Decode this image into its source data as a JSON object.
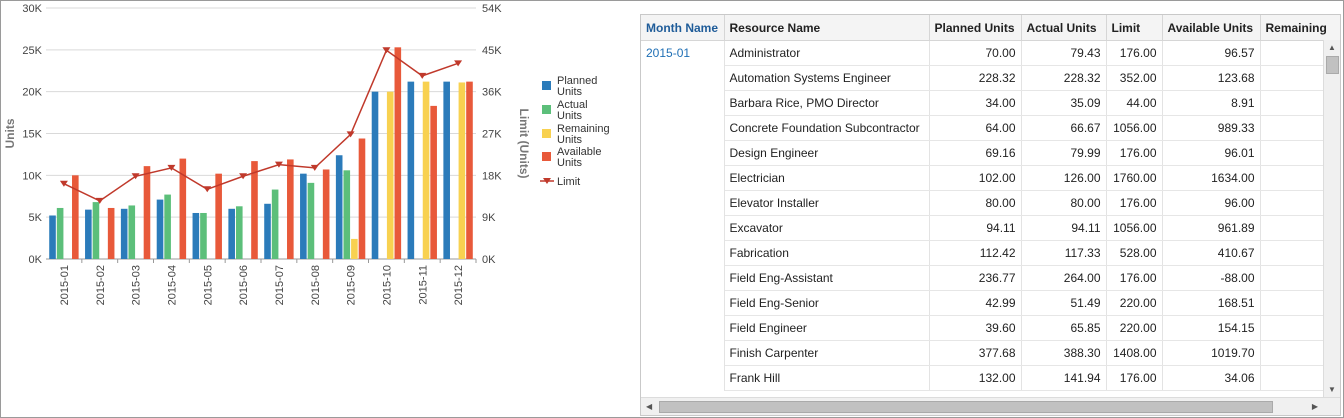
{
  "chart_data": {
    "type": "bar",
    "categories": [
      "2015-01",
      "2015-02",
      "2015-03",
      "2015-04",
      "2015-05",
      "2015-06",
      "2015-07",
      "2015-08",
      "2015-09",
      "2015-10",
      "2015-11",
      "2015-12"
    ],
    "series": [
      {
        "name": "Planned Units",
        "color": "#2b7bba",
        "values": [
          5200,
          5900,
          6000,
          7100,
          5500,
          6000,
          6600,
          10200,
          12400,
          20000,
          21200,
          21200
        ]
      },
      {
        "name": "Actual Units",
        "color": "#5cbf7a",
        "values": [
          6100,
          6800,
          6400,
          7700,
          5500,
          6300,
          8300,
          9100,
          10600,
          0,
          0,
          0
        ]
      },
      {
        "name": "Remaining Units",
        "color": "#f8d150",
        "values": [
          0,
          0,
          0,
          0,
          0,
          0,
          0,
          0,
          2400,
          20000,
          21200,
          21100
        ]
      },
      {
        "name": "Available Units",
        "color": "#e8593a",
        "values": [
          10000,
          6100,
          11100,
          12000,
          10200,
          11700,
          11900,
          10700,
          14400,
          25300,
          18300,
          21200
        ]
      }
    ],
    "line_series": {
      "name": "Limit",
      "color": "#c0392b",
      "values": [
        16200,
        12500,
        17800,
        19600,
        15000,
        17800,
        20300,
        19600,
        26800,
        44900,
        39400,
        42100
      ]
    },
    "ylabel": "Units",
    "y2label": "Limit (Units)",
    "yticks": [
      "0K",
      "5K",
      "10K",
      "15K",
      "20K",
      "25K",
      "30K"
    ],
    "y2ticks": [
      "0K",
      "9K",
      "18K",
      "27K",
      "36K",
      "45K",
      "54K"
    ],
    "ylim": [
      0,
      30000
    ],
    "y2lim": [
      0,
      54000
    ],
    "legend": [
      "Planned Units",
      "Actual Units",
      "Remaining Units",
      "Available Units",
      "Limit"
    ],
    "legend_position": "right",
    "grid": true
  },
  "table": {
    "columns": [
      "Month Name",
      "Resource Name",
      "Planned Units",
      "Actual Units",
      "Limit",
      "Available Units",
      "Remaining"
    ],
    "month": "2015-01",
    "rows": [
      {
        "resource": "Administrator",
        "planned": "70.00",
        "actual": "79.43",
        "limit": "176.00",
        "available": "96.57"
      },
      {
        "resource": "Automation Systems Engineer",
        "planned": "228.32",
        "actual": "228.32",
        "limit": "352.00",
        "available": "123.68"
      },
      {
        "resource": "Barbara Rice, PMO Director",
        "planned": "34.00",
        "actual": "35.09",
        "limit": "44.00",
        "available": "8.91"
      },
      {
        "resource": "Concrete Foundation Subcontractor",
        "planned": "64.00",
        "actual": "66.67",
        "limit": "1056.00",
        "available": "989.33"
      },
      {
        "resource": "Design Engineer",
        "planned": "69.16",
        "actual": "79.99",
        "limit": "176.00",
        "available": "96.01"
      },
      {
        "resource": "Electrician",
        "planned": "102.00",
        "actual": "126.00",
        "limit": "1760.00",
        "available": "1634.00"
      },
      {
        "resource": "Elevator Installer",
        "planned": "80.00",
        "actual": "80.00",
        "limit": "176.00",
        "available": "96.00"
      },
      {
        "resource": "Excavator",
        "planned": "94.11",
        "actual": "94.11",
        "limit": "1056.00",
        "available": "961.89"
      },
      {
        "resource": "Fabrication",
        "planned": "112.42",
        "actual": "117.33",
        "limit": "528.00",
        "available": "410.67"
      },
      {
        "resource": "Field Eng-Assistant",
        "planned": "236.77",
        "actual": "264.00",
        "limit": "176.00",
        "available": "-88.00"
      },
      {
        "resource": "Field Eng-Senior",
        "planned": "42.99",
        "actual": "51.49",
        "limit": "220.00",
        "available": "168.51"
      },
      {
        "resource": "Field Engineer",
        "planned": "39.60",
        "actual": "65.85",
        "limit": "220.00",
        "available": "154.15"
      },
      {
        "resource": "Finish Carpenter",
        "planned": "377.68",
        "actual": "388.30",
        "limit": "1408.00",
        "available": "1019.70"
      },
      {
        "resource": "Frank Hill",
        "planned": "132.00",
        "actual": "141.94",
        "limit": "176.00",
        "available": "34.06"
      }
    ]
  },
  "scrollbars": {
    "vertical": "vertical-scrollbar",
    "horizontal": "horizontal-scrollbar"
  }
}
